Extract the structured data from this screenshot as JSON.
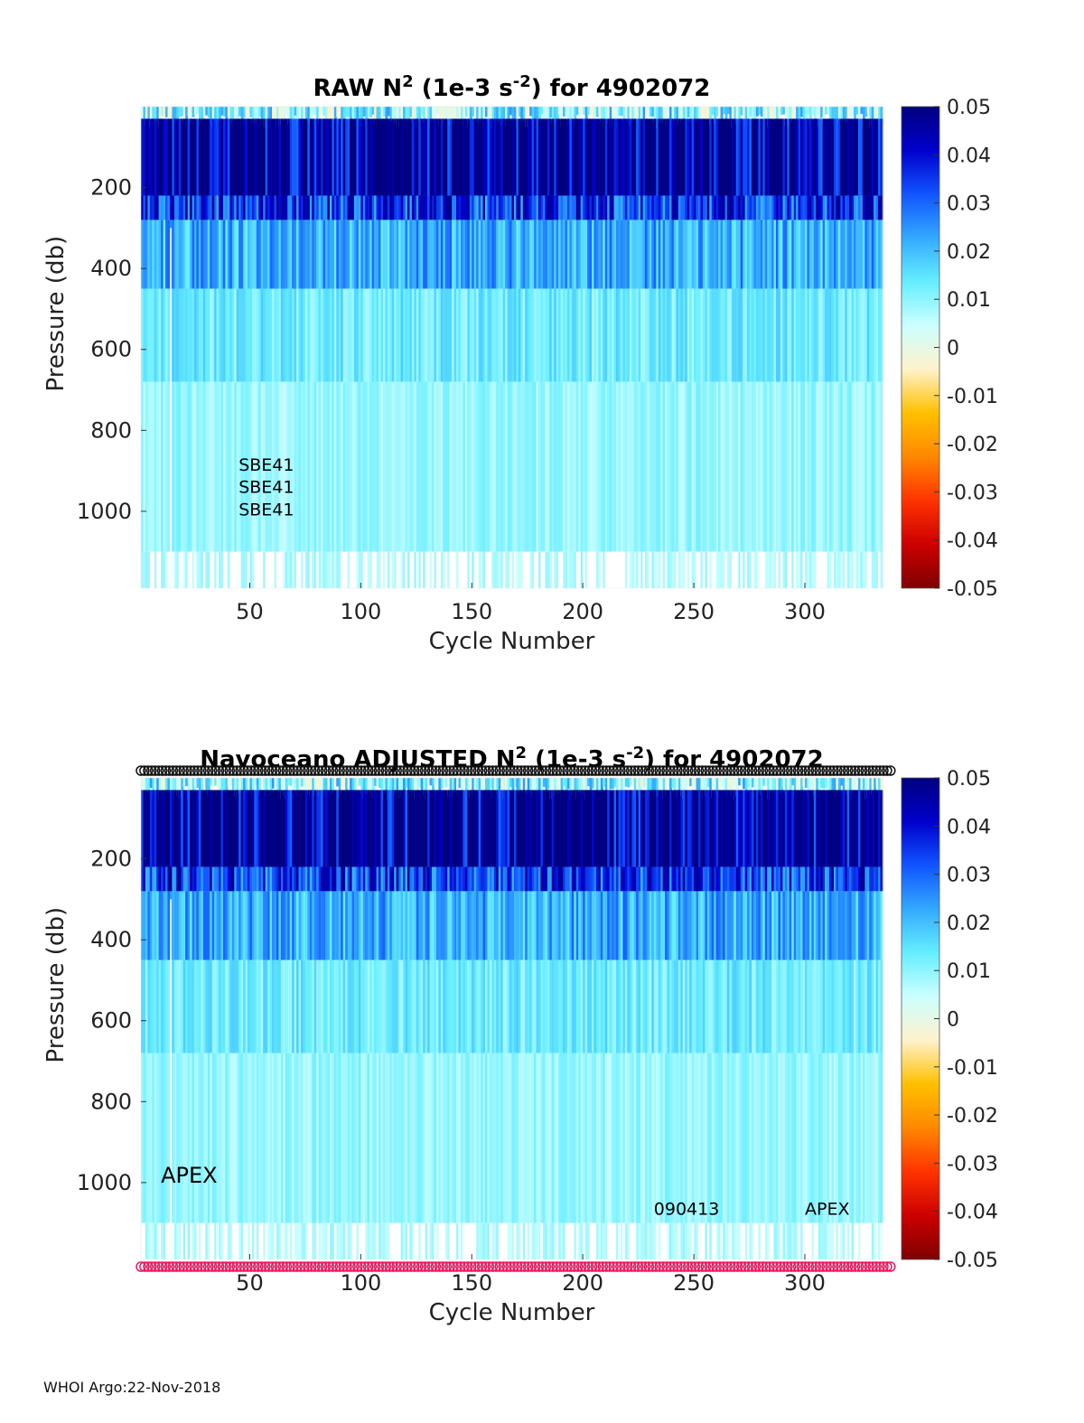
{
  "footer": "WHOI Argo:22-Nov-2018",
  "colorbar": {
    "ticks": [
      "0.05",
      "0.04",
      "0.03",
      "0.02",
      "0.01",
      "0",
      "-0.01",
      "-0.02",
      "-0.03",
      "-0.04",
      "-0.05"
    ],
    "stops": [
      "#7f0000",
      "#cc0000",
      "#ff3300",
      "#ff8800",
      "#ffc000",
      "#fff2cc",
      "#ccffff",
      "#66eeff",
      "#33aaff",
      "#1155ff",
      "#0000cc",
      "#000080"
    ]
  },
  "chart_data": [
    {
      "type": "heatmap",
      "title_main": "RAW N",
      "title_sup1": "2",
      "title_mid": " (1e-3 s",
      "title_sup2": "-2",
      "title_end": ") for 4902072",
      "xlabel": "Cycle Number",
      "ylabel": "Pressure (db)",
      "xticks": [
        "50",
        "100",
        "150",
        "200",
        "250",
        "300"
      ],
      "xtick_values": [
        50,
        100,
        150,
        200,
        250,
        300
      ],
      "yticks": [
        "200",
        "400",
        "600",
        "800",
        "1000"
      ],
      "ytick_values": [
        200,
        400,
        600,
        800,
        1000
      ],
      "xlim": [
        1,
        335
      ],
      "ylim": [
        0,
        1190
      ],
      "clim": [
        -0.05,
        0.05
      ],
      "annotations": [
        {
          "text": "SBE41",
          "x": 45,
          "y": 900
        },
        {
          "text": "SBE41",
          "x": 45,
          "y": 955
        },
        {
          "text": "SBE41",
          "x": 45,
          "y": 1010
        }
      ],
      "layers": [
        {
          "p_top": 0,
          "p_bottom": 30,
          "value": 0.0
        },
        {
          "p_top": 30,
          "p_bottom": 220,
          "value": 0.05
        },
        {
          "p_top": 220,
          "p_bottom": 280,
          "value": 0.035
        },
        {
          "p_top": 280,
          "p_bottom": 450,
          "value": 0.022
        },
        {
          "p_top": 450,
          "p_bottom": 680,
          "value": 0.013
        },
        {
          "p_top": 680,
          "p_bottom": 1100,
          "value": 0.009
        },
        {
          "p_top": 1100,
          "p_bottom": 1190,
          "value": 0.007
        }
      ],
      "marker_rows": []
    },
    {
      "type": "heatmap",
      "title_main": "Navoceano  ADJUSTED N",
      "title_sup1": "2",
      "title_mid": " (1e-3 s",
      "title_sup2": "-2",
      "title_end": ") for 4902072",
      "xlabel": "Cycle Number",
      "ylabel": "Pressure (db)",
      "xticks": [
        "50",
        "100",
        "150",
        "200",
        "250",
        "300"
      ],
      "xtick_values": [
        50,
        100,
        150,
        200,
        250,
        300
      ],
      "yticks": [
        "200",
        "400",
        "600",
        "800",
        "1000"
      ],
      "ytick_values": [
        200,
        400,
        600,
        800,
        1000
      ],
      "xlim": [
        1,
        335
      ],
      "ylim": [
        0,
        1190
      ],
      "clim": [
        -0.05,
        0.05
      ],
      "annotations": [
        {
          "text": "APEX",
          "x": 10,
          "y": 1000
        },
        {
          "text": "090413",
          "x": 232,
          "y": 1080
        },
        {
          "text": "APEX",
          "x": 300,
          "y": 1080
        }
      ],
      "layers": [
        {
          "p_top": 0,
          "p_bottom": 30,
          "value": 0.0
        },
        {
          "p_top": 30,
          "p_bottom": 220,
          "value": 0.05
        },
        {
          "p_top": 220,
          "p_bottom": 280,
          "value": 0.035
        },
        {
          "p_top": 280,
          "p_bottom": 450,
          "value": 0.022
        },
        {
          "p_top": 450,
          "p_bottom": 680,
          "value": 0.013
        },
        {
          "p_top": 680,
          "p_bottom": 1100,
          "value": 0.009
        },
        {
          "p_top": 1100,
          "p_bottom": 1190,
          "value": 0.007
        }
      ],
      "marker_rows": [
        {
          "name": "qc-flags-top",
          "p": -15,
          "color": "#111111"
        },
        {
          "name": "qc-flags-bottom",
          "p": 1205,
          "color": "#e8195f"
        }
      ]
    }
  ]
}
